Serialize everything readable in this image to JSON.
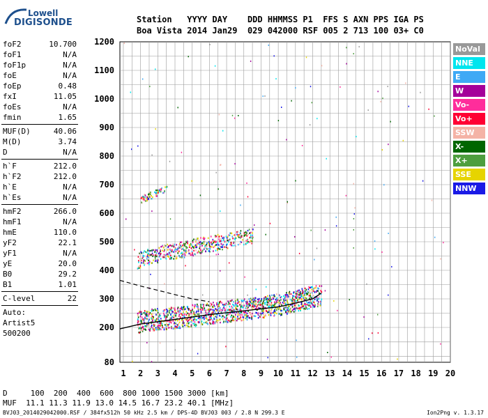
{
  "logo": {
    "top": "Lowell",
    "bottom": "DIGISONDE"
  },
  "header": {
    "labels": "Station   YYYY DAY    DDD HHMMSS P1  FFS S AXN PPS IGA PS",
    "values": "Boa Vista 2014 Jan29  029 042000 RSF 005 2 713 100 03+ C0"
  },
  "params": [
    {
      "label": "foF2",
      "value": "10.700"
    },
    {
      "label": "foF1",
      "value": "N/A"
    },
    {
      "label": "foF1p",
      "value": "N/A"
    },
    {
      "label": "foE",
      "value": "N/A"
    },
    {
      "label": "foEp",
      "value": "0.48"
    },
    {
      "label": "fxI",
      "value": "11.05"
    },
    {
      "label": "foEs",
      "value": "N/A"
    },
    {
      "label": "fmin",
      "value": "1.65"
    },
    {
      "sep": true
    },
    {
      "label": "MUF(D)",
      "value": "40.06"
    },
    {
      "label": "M(D)",
      "value": "3.74"
    },
    {
      "label": "D",
      "value": "N/A"
    },
    {
      "sep": true
    },
    {
      "label": "h`F",
      "value": "212.0"
    },
    {
      "label": "h`F2",
      "value": "212.0"
    },
    {
      "label": "h`E",
      "value": "N/A"
    },
    {
      "label": "h`Es",
      "value": "N/A"
    },
    {
      "sep": true
    },
    {
      "label": "hmF2",
      "value": "266.0"
    },
    {
      "label": "hmF1",
      "value": "N/A"
    },
    {
      "label": "hmE",
      "value": "110.0"
    },
    {
      "label": "yF2",
      "value": "22.1"
    },
    {
      "label": "yF1",
      "value": "N/A"
    },
    {
      "label": "yE",
      "value": "20.0"
    },
    {
      "label": "B0",
      "value": "29.2"
    },
    {
      "label": "B1",
      "value": "1.01"
    },
    {
      "sep": true
    },
    {
      "label": "C-level",
      "value": "22"
    },
    {
      "sep": true
    },
    {
      "text": "Auto:"
    },
    {
      "text": "Artist5"
    },
    {
      "text": "500200"
    }
  ],
  "legend": [
    {
      "label": "NoVal",
      "color": "#999999"
    },
    {
      "label": "NNE",
      "color": "#00e5ee"
    },
    {
      "label": "E",
      "color": "#3fa9f5"
    },
    {
      "label": "W",
      "color": "#a4009a"
    },
    {
      "label": "Vo-",
      "color": "#ff2d9b"
    },
    {
      "label": "Vo+",
      "color": "#ff0033"
    },
    {
      "label": "SSW",
      "color": "#f4b3a6"
    },
    {
      "label": "X-",
      "color": "#006600"
    },
    {
      "label": "X+",
      "color": "#4d9e3e"
    },
    {
      "label": "SSE",
      "color": "#e6d400"
    },
    {
      "label": "NNW",
      "color": "#1a1ae6"
    }
  ],
  "footer": {
    "d_line": "D     100  200  400  600  800 1000 1500 3000 [km]",
    "muf_line": "MUF  11.1 11.3 11.9 13.0 14.5 16.7 23.2 40.1 [MHz]",
    "file_line": "BVJ03_2014029042000.RSF / 384fx512h 50 kHz 2.5 km / DPS-4D BVJ03 003 / 2.8 N 299.3 E",
    "version": "Ion2Png v. 1.3.17"
  },
  "chart_data": {
    "type": "scatter",
    "title": "",
    "xlabel": "",
    "ylabel": "",
    "xlim": [
      0.8,
      20
    ],
    "ylim": [
      80,
      1200
    ],
    "x_ticks": [
      1,
      2,
      3,
      4,
      5,
      6,
      7,
      8,
      9,
      10,
      11,
      12,
      13,
      14,
      15,
      16,
      17,
      18,
      19,
      20
    ],
    "y_ticks": [
      80,
      200,
      300,
      400,
      500,
      600,
      700,
      800,
      900,
      1000,
      1100,
      1200
    ],
    "grid": true,
    "traces": [
      {
        "name": "F2 ordinary trace",
        "x": [
          1.8,
          2.5,
          3.5,
          4.5,
          5.5,
          6.5,
          7.5,
          8.5,
          9.5,
          10.5,
          11.5,
          12.5
        ],
        "y": [
          212,
          220,
          226,
          232,
          240,
          248,
          255,
          262,
          270,
          280,
          295,
          310
        ]
      },
      {
        "name": "F2 second hop",
        "x": [
          1.8,
          2.5,
          3.5,
          4.5,
          5.5,
          6.5,
          7.5,
          8.5
        ],
        "y": [
          430,
          445,
          460,
          470,
          485,
          495,
          505,
          515
        ]
      },
      {
        "name": "F2 third hop",
        "x": [
          2.0,
          2.5,
          3.0,
          3.5
        ],
        "y": [
          645,
          660,
          670,
          685
        ]
      }
    ],
    "profile": {
      "x": [
        0.8,
        2,
        4,
        6,
        8,
        10,
        11,
        12,
        12.5
      ],
      "y": [
        195,
        212,
        228,
        245,
        258,
        272,
        285,
        300,
        320
      ]
    },
    "profile_dashed": {
      "x": [
        0.8,
        2,
        3,
        4,
        5,
        6
      ],
      "y": [
        365,
        345,
        330,
        315,
        300,
        290
      ]
    }
  }
}
